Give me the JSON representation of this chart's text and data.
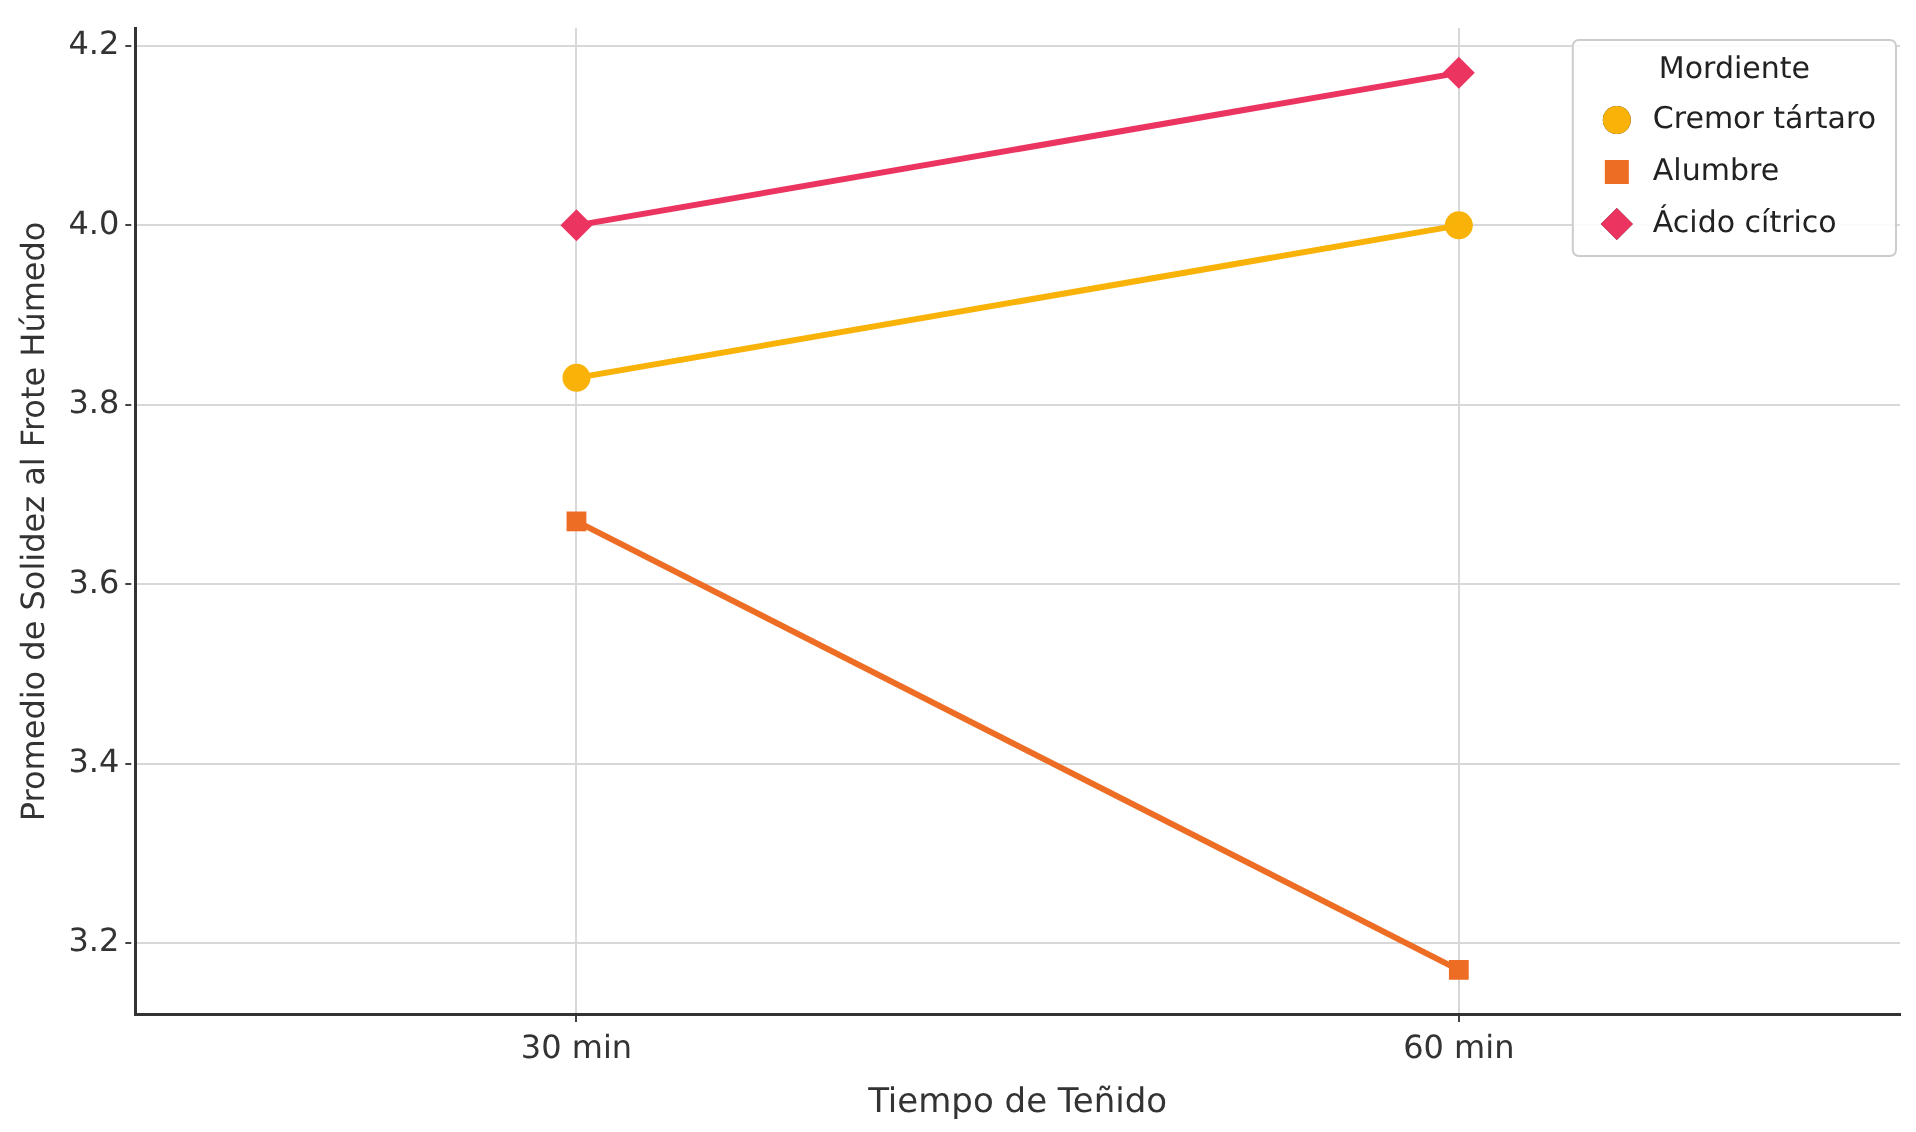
{
  "chart_data": {
    "type": "line",
    "xlabel": "Tiempo de Teñido",
    "ylabel": "Promedio de Solidez al Frote Húmedo",
    "legend_title": "Mordiente",
    "categories": [
      "30 min",
      "60 min"
    ],
    "series": [
      {
        "name": "Cremor tártaro",
        "color": "#f9b208",
        "values": [
          3.83,
          4.0
        ],
        "marker": "circle"
      },
      {
        "name": "Alumbre",
        "color": "#ee6d24",
        "values": [
          3.67,
          3.17
        ],
        "marker": "square"
      },
      {
        "name": "Ácido cítrico",
        "color": "#ec3461",
        "values": [
          4.0,
          4.17
        ],
        "marker": "diamond"
      }
    ],
    "ylim": [
      3.12,
      4.22
    ],
    "yticks": [
      {
        "value": 3.2,
        "label": "3.2"
      },
      {
        "value": 3.4,
        "label": "3.4"
      },
      {
        "value": 3.6,
        "label": "3.6"
      },
      {
        "value": 3.8,
        "label": "3.8"
      },
      {
        "value": 4.0,
        "label": "4.0"
      },
      {
        "value": 4.2,
        "label": "4.2"
      }
    ],
    "grid": true,
    "legend": "top right",
    "line_style": "solid"
  }
}
